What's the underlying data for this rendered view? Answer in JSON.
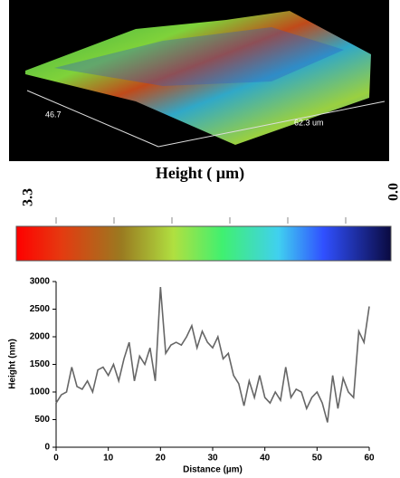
{
  "surface": {
    "width_label": "46.7",
    "length_label": "62.3 um"
  },
  "colorbar": {
    "title": "Height ( µm)",
    "max_label": "3.3",
    "min_label": "0.0"
  },
  "chart_data": {
    "type": "line",
    "x_label": "Distance (µm)",
    "y_label": "Height (nm)",
    "color": "#666666",
    "x": [
      0,
      1,
      2,
      3,
      4,
      5,
      6,
      7,
      8,
      9,
      10,
      11,
      12,
      13,
      14,
      15,
      16,
      17,
      18,
      19,
      20,
      21,
      22,
      23,
      24,
      25,
      26,
      27,
      28,
      29,
      30,
      31,
      32,
      33,
      34,
      35,
      36,
      37,
      38,
      39,
      40,
      41,
      42,
      43,
      44,
      45,
      46,
      47,
      48,
      49,
      50,
      51,
      52,
      53,
      54,
      55,
      56,
      57,
      58,
      59,
      60
    ],
    "values": [
      800,
      950,
      1000,
      1450,
      1100,
      1050,
      1200,
      1000,
      1400,
      1450,
      1300,
      1500,
      1200,
      1600,
      1900,
      1200,
      1650,
      1500,
      1800,
      1200,
      2900,
      1700,
      1850,
      1900,
      1850,
      2000,
      2200,
      1800,
      2100,
      1900,
      1800,
      2000,
      1600,
      1700,
      1300,
      1150,
      750,
      1200,
      900,
      1300,
      900,
      800,
      1000,
      850,
      1450,
      900,
      1050,
      1000,
      700,
      900,
      1000,
      800,
      450,
      1300,
      700,
      1250,
      1000,
      900,
      2100,
      1900,
      2550
    ],
    "xlim": [
      0,
      60
    ],
    "xticks": [
      0,
      10,
      20,
      30,
      40,
      50,
      60
    ],
    "ylim": [
      0,
      3000
    ],
    "yticks": [
      0,
      500,
      1000,
      1500,
      2000,
      2500,
      3000
    ]
  }
}
